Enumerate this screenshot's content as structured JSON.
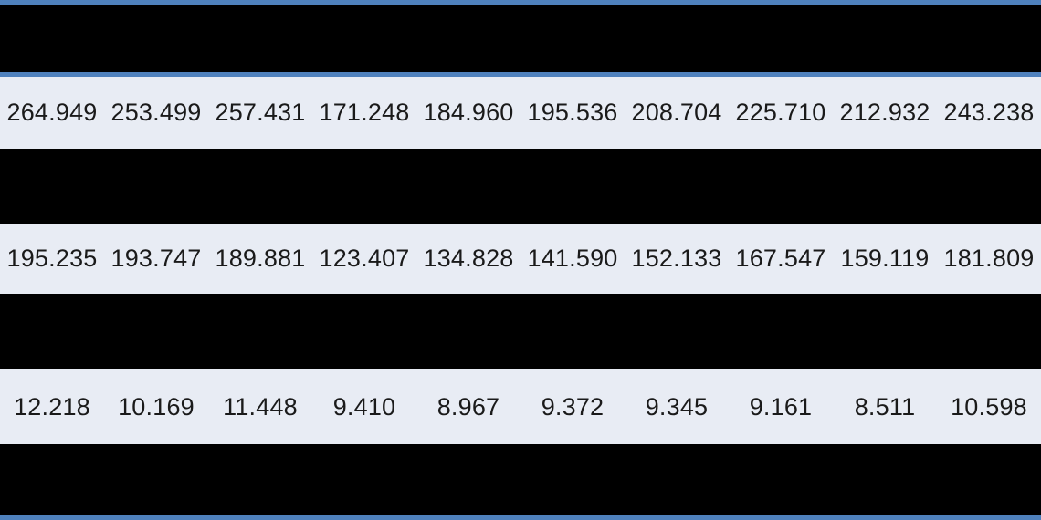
{
  "table": {
    "accent_color": "#4f81bd",
    "redacted_color": "#000000",
    "light_row_color": "#e8ecf4",
    "text_color": "#1a1a1a",
    "column_count": 10,
    "rows": [
      {
        "values": [
          "264.949",
          "253.499",
          "257.431",
          "171.248",
          "184.960",
          "195.536",
          "208.704",
          "225.710",
          "212.932",
          "243.238"
        ]
      },
      {
        "values": [
          "195.235",
          "193.747",
          "189.881",
          "123.407",
          "134.828",
          "141.590",
          "152.133",
          "167.547",
          "159.119",
          "181.809"
        ]
      },
      {
        "values": [
          "12.218",
          "10.169",
          "11.448",
          "9.410",
          "8.967",
          "9.372",
          "9.345",
          "9.161",
          "8.511",
          "10.598"
        ]
      }
    ]
  },
  "chart_data": {
    "type": "table",
    "title": "",
    "columns": [
      "c1",
      "c2",
      "c3",
      "c4",
      "c5",
      "c6",
      "c7",
      "c8",
      "c9",
      "c10"
    ],
    "rows": [
      [
        264.949,
        253.499,
        257.431,
        171.248,
        184.96,
        195.536,
        208.704,
        225.71,
        212.932,
        243.238
      ],
      [
        195.235,
        193.747,
        189.881,
        123.407,
        134.828,
        141.59,
        152.133,
        167.547,
        159.119,
        181.809
      ],
      [
        12.218,
        10.169,
        11.448,
        9.41,
        8.967,
        9.372,
        9.345,
        9.161,
        8.511,
        10.598
      ]
    ],
    "notes": "Header row and three separator rows are solid black (redacted); table framed by steel-blue accent borders top, under header, and bottom."
  }
}
